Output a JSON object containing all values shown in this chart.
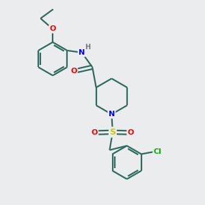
{
  "background_color": "#eaecee",
  "bond_color": "#2d6b5e",
  "bond_width": 1.6,
  "atom_colors": {
    "N": "#0000ff",
    "O": "#ff0000",
    "S": "#cccc00",
    "Cl": "#00bb00",
    "H": "#777777",
    "C": "#2d6b5e"
  },
  "figsize": [
    3.0,
    3.0
  ],
  "dpi": 100
}
